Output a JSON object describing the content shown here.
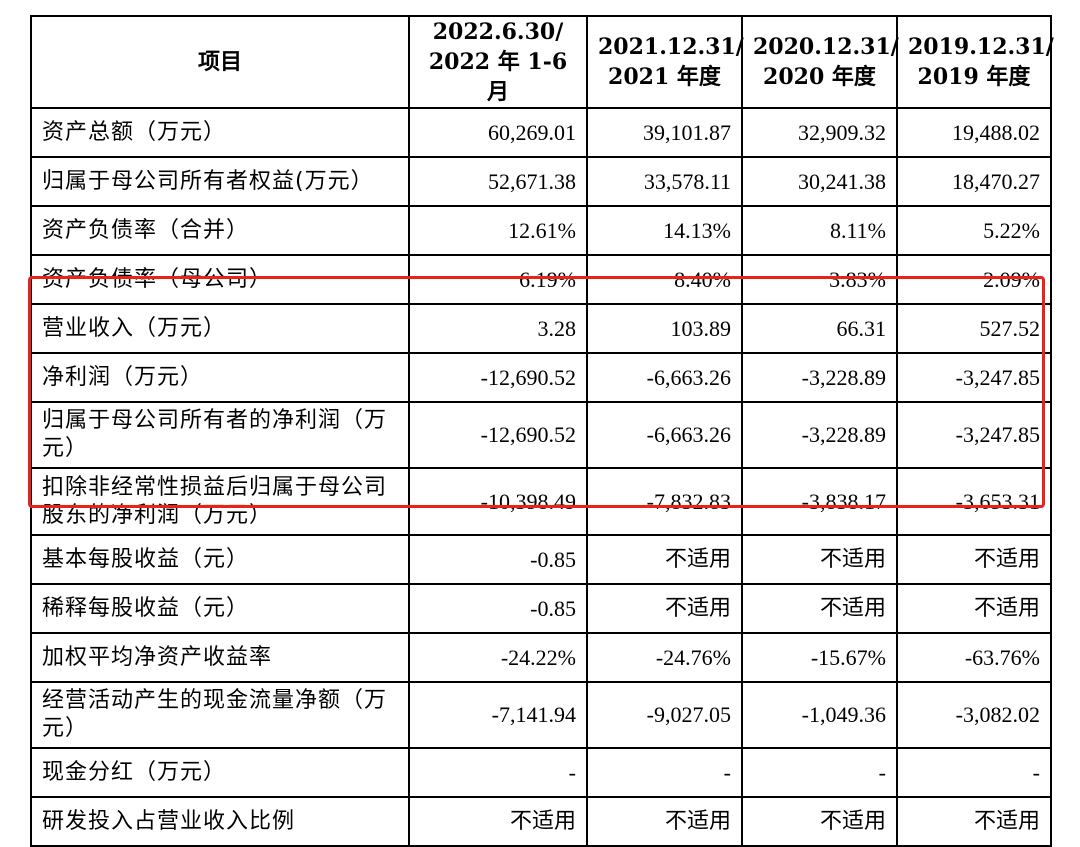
{
  "header": {
    "item": "项目",
    "col1": [
      "2022.6.30/",
      "2022 年 1-6 月"
    ],
    "col2": [
      "2021.12.31/",
      "2021 年度"
    ],
    "col3": [
      "2020.12.31/",
      "2020 年度"
    ],
    "col4": [
      "2019.12.31/",
      "2019 年度"
    ]
  },
  "rows": [
    {
      "label": "资产总额（万元）",
      "v": [
        "60,269.01",
        "39,101.87",
        "32,909.32",
        "19,488.02"
      ]
    },
    {
      "label": "归属于母公司所有者权益(万元）",
      "v": [
        "52,671.38",
        "33,578.11",
        "30,241.38",
        "18,470.27"
      ]
    },
    {
      "label": "资产负债率（合并）",
      "v": [
        "12.61%",
        "14.13%",
        "8.11%",
        "5.22%"
      ]
    },
    {
      "label": "资产负债率（母公司）",
      "v": [
        "6.19%",
        "8.40%",
        "3.83%",
        "2.09%"
      ]
    },
    {
      "label": "营业收入（万元）",
      "v": [
        "3.28",
        "103.89",
        "66.31",
        "527.52"
      ]
    },
    {
      "label": "净利润（万元）",
      "v": [
        "-12,690.52",
        "-6,663.26",
        "-3,228.89",
        "-3,247.85"
      ]
    },
    {
      "label": "归属于母公司所有者的净利润（万元）",
      "v": [
        "-12,690.52",
        "-6,663.26",
        "-3,228.89",
        "-3,247.85"
      ]
    },
    {
      "label": "扣除非经常性损益后归属于母公司股东的净利润（万元）",
      "v": [
        "-10,398.49",
        "-7,832.83",
        "-3,838.17",
        "-3,653.31"
      ]
    },
    {
      "label": "基本每股收益（元）",
      "v": [
        "-0.85",
        "不适用",
        "不适用",
        "不适用"
      ]
    },
    {
      "label": "稀释每股收益（元）",
      "v": [
        "-0.85",
        "不适用",
        "不适用",
        "不适用"
      ]
    },
    {
      "label": "加权平均净资产收益率",
      "v": [
        "-24.22%",
        "-24.76%",
        "-15.67%",
        "-63.76%"
      ]
    },
    {
      "label": "经营活动产生的现金流量净额（万元）",
      "v": [
        "-7,141.94",
        "-9,027.05",
        "-1,049.36",
        "-3,082.02"
      ]
    },
    {
      "label": "现金分红（万元）",
      "v": [
        "-",
        "-",
        "-",
        "-"
      ]
    },
    {
      "label": "研发投入占营业收入比例",
      "v": [
        "不适用",
        "不适用",
        "不适用",
        "不适用"
      ]
    }
  ],
  "highlight_color": "#e8231d"
}
